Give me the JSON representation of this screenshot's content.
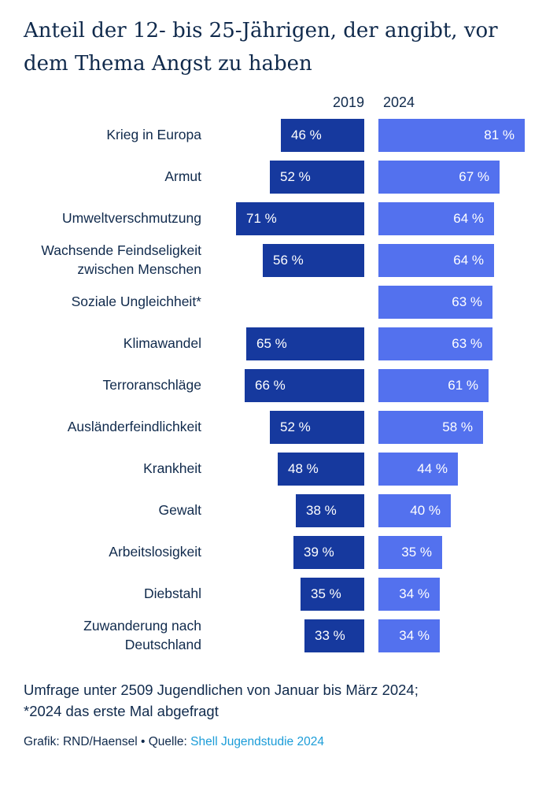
{
  "title": "Anteil der 12- bis 25-Jährigen, der angibt, vor dem Thema Angst zu haben",
  "chart_data": {
    "type": "bar",
    "orientation": "horizontal-paired",
    "title": "Anteil der 12- bis 25-Jährigen, der angibt, vor dem Thema Angst zu haben",
    "value_suffix": " %",
    "xlim": [
      0,
      100
    ],
    "categories": [
      "Krieg in Europa",
      "Armut",
      "Umweltverschmutzung",
      "Wachsende Feindseligkeit zwischen Menschen",
      "Soziale Ungleichheit*",
      "Klimawandel",
      "Terroranschläge",
      "Ausländerfeindlichkeit",
      "Krankheit",
      "Gewalt",
      "Arbeitslosigkeit",
      "Diebstahl",
      "Zuwanderung nach Deutschland"
    ],
    "series": [
      {
        "name": "2019",
        "color": "#16399e",
        "values": [
          46,
          52,
          71,
          56,
          null,
          65,
          66,
          52,
          48,
          38,
          39,
          35,
          33
        ]
      },
      {
        "name": "2024",
        "color": "#5371ee",
        "values": [
          81,
          67,
          64,
          64,
          63,
          63,
          61,
          58,
          44,
          40,
          35,
          34,
          34
        ]
      }
    ]
  },
  "footer": {
    "note_line1": "Umfrage unter 2509 Jugendlichen von Januar bis März 2024;",
    "note_line2": "*2024 das erste Mal abgefragt",
    "credit_prefix": "Grafik: RND/Haensel • Quelle: ",
    "source_link": "Shell Jugendstudie 2024"
  }
}
